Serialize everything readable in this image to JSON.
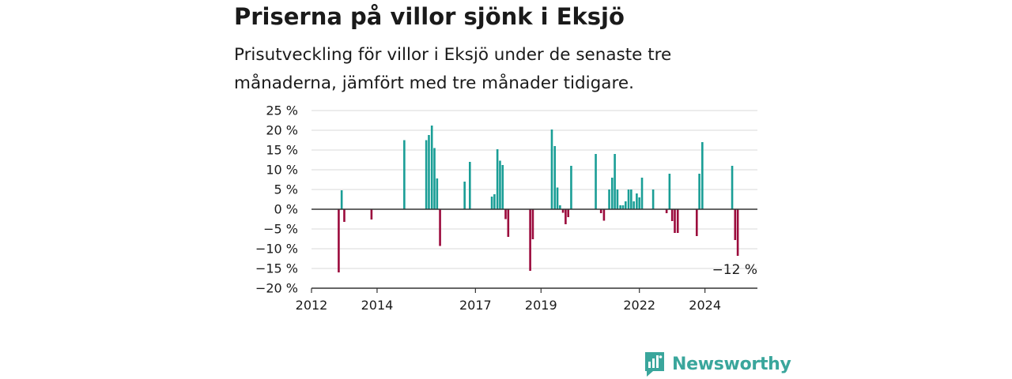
{
  "title": "Priserna på villor sjönk i Eksjö",
  "subtitle": "Prisutveckling för villor i Eksjö under de senaste tre månaderna, jämfört med tre månader tidigare.",
  "brand": {
    "name": "Newsworthy",
    "icon": "newsworthy-logo-icon"
  },
  "colors": {
    "positive": "#1a9e96",
    "negative": "#9b0a3c",
    "grid": "#d9d9d9",
    "zero_line": "#333333"
  },
  "chart_data": {
    "type": "bar",
    "ylim": [
      -20,
      25
    ],
    "xlim": [
      2012.0,
      2025.6
    ],
    "y_ticks": [
      {
        "value": 25,
        "label": "25 %"
      },
      {
        "value": 20,
        "label": "20 %"
      },
      {
        "value": 15,
        "label": "15 %"
      },
      {
        "value": 10,
        "label": "10 %"
      },
      {
        "value": 5,
        "label": "5 %"
      },
      {
        "value": 0,
        "label": "0 %"
      },
      {
        "value": -5,
        "label": "−5 %"
      },
      {
        "value": -10,
        "label": "−10 %"
      },
      {
        "value": -15,
        "label": "−15 %"
      },
      {
        "value": -20,
        "label": "−20 %"
      }
    ],
    "x_ticks": [
      {
        "value": 2012,
        "label": "2012"
      },
      {
        "value": 2014,
        "label": "2014"
      },
      {
        "value": 2017,
        "label": "2017"
      },
      {
        "value": 2019,
        "label": "2019"
      },
      {
        "value": 2022,
        "label": "2022"
      },
      {
        "value": 2024,
        "label": "2024"
      }
    ],
    "grid": true,
    "annotation": {
      "x": 2025.08,
      "y": -12,
      "label": "−12 %"
    },
    "points": [
      {
        "x": 2012.83,
        "y": -16
      },
      {
        "x": 2012.92,
        "y": 4.8
      },
      {
        "x": 2013.0,
        "y": -3.2
      },
      {
        "x": 2013.83,
        "y": -2.6
      },
      {
        "x": 2014.83,
        "y": 17.5
      },
      {
        "x": 2015.5,
        "y": 17.5
      },
      {
        "x": 2015.58,
        "y": 18.8
      },
      {
        "x": 2015.67,
        "y": 21.2
      },
      {
        "x": 2015.75,
        "y": 15.5
      },
      {
        "x": 2015.83,
        "y": 7.8
      },
      {
        "x": 2015.92,
        "y": -9.3
      },
      {
        "x": 2016.67,
        "y": 7.0
      },
      {
        "x": 2016.83,
        "y": 12.0
      },
      {
        "x": 2017.5,
        "y": 3.2
      },
      {
        "x": 2017.58,
        "y": 3.8
      },
      {
        "x": 2017.67,
        "y": 15.2
      },
      {
        "x": 2017.75,
        "y": 12.3
      },
      {
        "x": 2017.83,
        "y": 11.2
      },
      {
        "x": 2017.92,
        "y": -2.5
      },
      {
        "x": 2018.0,
        "y": -7.0
      },
      {
        "x": 2018.67,
        "y": -15.6
      },
      {
        "x": 2018.75,
        "y": -7.6
      },
      {
        "x": 2019.33,
        "y": 20.2
      },
      {
        "x": 2019.42,
        "y": 16.0
      },
      {
        "x": 2019.5,
        "y": 5.5
      },
      {
        "x": 2019.58,
        "y": 1.0
      },
      {
        "x": 2019.67,
        "y": -0.9
      },
      {
        "x": 2019.75,
        "y": -3.8
      },
      {
        "x": 2019.83,
        "y": -2.0
      },
      {
        "x": 2019.92,
        "y": 11.0
      },
      {
        "x": 2020.67,
        "y": 14.0
      },
      {
        "x": 2020.83,
        "y": -1.0
      },
      {
        "x": 2020.92,
        "y": -2.9
      },
      {
        "x": 2021.08,
        "y": 5.0
      },
      {
        "x": 2021.17,
        "y": 8.0
      },
      {
        "x": 2021.25,
        "y": 14.0
      },
      {
        "x": 2021.33,
        "y": 5.0
      },
      {
        "x": 2021.42,
        "y": 1.0
      },
      {
        "x": 2021.5,
        "y": 1.0
      },
      {
        "x": 2021.58,
        "y": 2.0
      },
      {
        "x": 2021.67,
        "y": 5.0
      },
      {
        "x": 2021.75,
        "y": 5.0
      },
      {
        "x": 2021.83,
        "y": 2.0
      },
      {
        "x": 2021.92,
        "y": 4.0
      },
      {
        "x": 2022.0,
        "y": 3.0
      },
      {
        "x": 2022.08,
        "y": 8.0
      },
      {
        "x": 2022.42,
        "y": 5.0
      },
      {
        "x": 2022.83,
        "y": -1.0
      },
      {
        "x": 2022.92,
        "y": 9.0
      },
      {
        "x": 2023.0,
        "y": -3.0
      },
      {
        "x": 2023.08,
        "y": -6.0
      },
      {
        "x": 2023.17,
        "y": -6.0
      },
      {
        "x": 2023.75,
        "y": -6.8
      },
      {
        "x": 2023.83,
        "y": 9.0
      },
      {
        "x": 2023.92,
        "y": 17.0
      },
      {
        "x": 2024.83,
        "y": 11.0
      },
      {
        "x": 2024.92,
        "y": -7.8
      },
      {
        "x": 2025.0,
        "y": -11.8
      }
    ]
  }
}
